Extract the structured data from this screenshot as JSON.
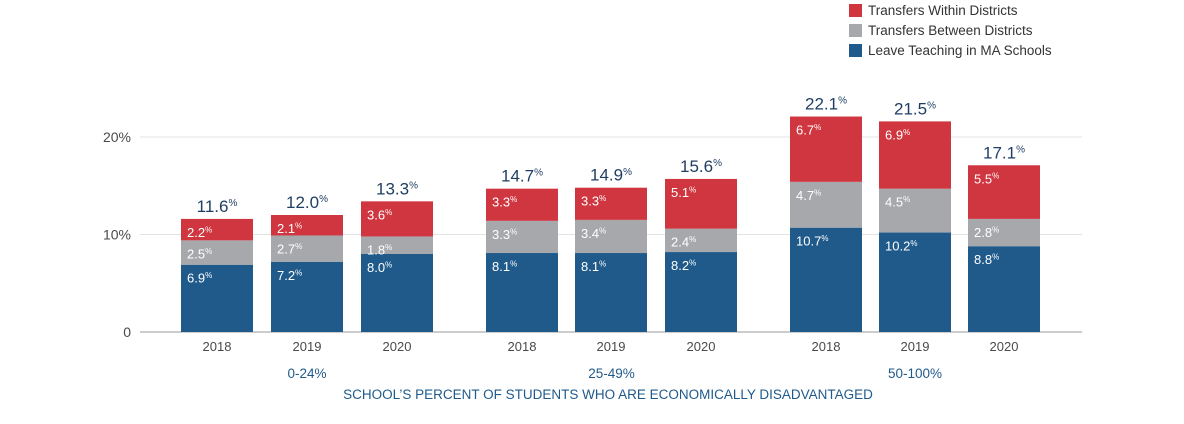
{
  "chart_data": {
    "type": "bar",
    "stacked": true,
    "title": "",
    "xlabel": "SCHOOL’S PERCENT OF STUDENTS WHO ARE ECONOMICALLY DISADVANTAGED",
    "ylabel": "",
    "ylim": [
      0,
      22
    ],
    "yticks": [
      {
        "value": 0,
        "label": "0"
      },
      {
        "value": 10,
        "label": "10%"
      },
      {
        "value": 20,
        "label": "20%"
      }
    ],
    "grid": true,
    "legend_position": "top-right",
    "groups": [
      {
        "label": "0-24%",
        "categories": [
          "2018",
          "2019",
          "2020"
        ]
      },
      {
        "label": "25-49%",
        "categories": [
          "2018",
          "2019",
          "2020"
        ]
      },
      {
        "label": "50-100%",
        "categories": [
          "2018",
          "2019",
          "2020"
        ]
      }
    ],
    "series": [
      {
        "name": "Leave Teaching in MA Schools",
        "color": "#1f5a8b",
        "values": [
          6.9,
          7.2,
          8.0,
          8.1,
          8.1,
          8.2,
          10.7,
          10.2,
          8.8
        ],
        "labels": [
          "6.9",
          "7.2",
          "8.0",
          "8.1",
          "8.1",
          "8.2",
          "10.7",
          "10.2",
          "8.8"
        ]
      },
      {
        "name": "Transfers Between Districts",
        "color": "#a6a8ab",
        "values": [
          2.5,
          2.7,
          1.8,
          3.3,
          3.4,
          2.4,
          4.7,
          4.5,
          2.8
        ],
        "labels": [
          "2.5",
          "2.7",
          "1.8",
          "3.3",
          "3.4",
          "2.4",
          "4.7",
          "4.5",
          "2.8"
        ]
      },
      {
        "name": "Transfers Within Districts",
        "color": "#d0363f",
        "values": [
          2.2,
          2.1,
          3.6,
          3.3,
          3.3,
          5.1,
          6.7,
          6.9,
          5.5
        ],
        "labels": [
          "2.2",
          "2.1",
          "3.6",
          "3.3",
          "3.3",
          "5.1",
          "6.7",
          "6.9",
          "5.5"
        ]
      }
    ],
    "totals": [
      11.6,
      12.0,
      13.3,
      14.7,
      14.9,
      15.6,
      22.1,
      21.5,
      17.1
    ],
    "total_labels": [
      "11.6",
      "12.0",
      "13.3",
      "14.7",
      "14.9",
      "15.6",
      "22.1",
      "21.5",
      "17.1"
    ],
    "percent_sign": "%"
  },
  "legend": [
    {
      "label": "Transfers Within Districts",
      "color": "#d0363f"
    },
    {
      "label": "Transfers Between Districts",
      "color": "#a6a8ab"
    },
    {
      "label": "Leave Teaching in MA Schools",
      "color": "#1f5a8b"
    }
  ]
}
